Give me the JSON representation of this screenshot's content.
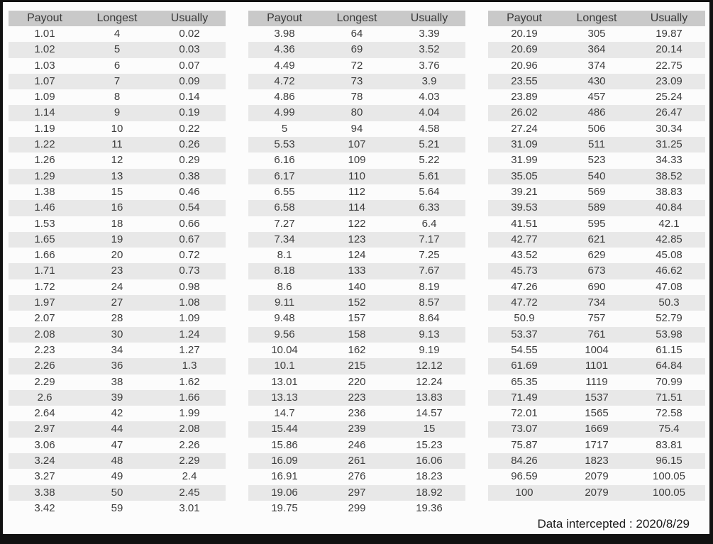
{
  "footer": {
    "label": "Data intercepted : 2020/8/29"
  },
  "colors": {
    "frame": "#111111",
    "page_bg": "#fcfcfc",
    "header_bg": "#c9c9c9",
    "stripe_bg": "#e8e8e8",
    "text": "#3d3d3d"
  },
  "chart_data": {
    "type": "table",
    "title": "",
    "columns": [
      "Payout",
      "Longest",
      "Usually"
    ],
    "panels": [
      {
        "rows": [
          [
            "1.01",
            "4",
            "0.02"
          ],
          [
            "1.02",
            "5",
            "0.03"
          ],
          [
            "1.03",
            "6",
            "0.07"
          ],
          [
            "1.07",
            "7",
            "0.09"
          ],
          [
            "1.09",
            "8",
            "0.14"
          ],
          [
            "1.14",
            "9",
            "0.19"
          ],
          [
            "1.19",
            "10",
            "0.22"
          ],
          [
            "1.22",
            "11",
            "0.26"
          ],
          [
            "1.26",
            "12",
            "0.29"
          ],
          [
            "1.29",
            "13",
            "0.38"
          ],
          [
            "1.38",
            "15",
            "0.46"
          ],
          [
            "1.46",
            "16",
            "0.54"
          ],
          [
            "1.53",
            "18",
            "0.66"
          ],
          [
            "1.65",
            "19",
            "0.67"
          ],
          [
            "1.66",
            "20",
            "0.72"
          ],
          [
            "1.71",
            "23",
            "0.73"
          ],
          [
            "1.72",
            "24",
            "0.98"
          ],
          [
            "1.97",
            "27",
            "1.08"
          ],
          [
            "2.07",
            "28",
            "1.09"
          ],
          [
            "2.08",
            "30",
            "1.24"
          ],
          [
            "2.23",
            "34",
            "1.27"
          ],
          [
            "2.26",
            "36",
            "1.3"
          ],
          [
            "2.29",
            "38",
            "1.62"
          ],
          [
            "2.6",
            "39",
            "1.66"
          ],
          [
            "2.64",
            "42",
            "1.99"
          ],
          [
            "2.97",
            "44",
            "2.08"
          ],
          [
            "3.06",
            "47",
            "2.26"
          ],
          [
            "3.24",
            "48",
            "2.29"
          ],
          [
            "3.27",
            "49",
            "2.4"
          ],
          [
            "3.38",
            "50",
            "2.45"
          ],
          [
            "3.42",
            "59",
            "3.01"
          ]
        ]
      },
      {
        "rows": [
          [
            "3.98",
            "64",
            "3.39"
          ],
          [
            "4.36",
            "69",
            "3.52"
          ],
          [
            "4.49",
            "72",
            "3.76"
          ],
          [
            "4.72",
            "73",
            "3.9"
          ],
          [
            "4.86",
            "78",
            "4.03"
          ],
          [
            "4.99",
            "80",
            "4.04"
          ],
          [
            "5",
            "94",
            "4.58"
          ],
          [
            "5.53",
            "107",
            "5.21"
          ],
          [
            "6.16",
            "109",
            "5.22"
          ],
          [
            "6.17",
            "110",
            "5.61"
          ],
          [
            "6.55",
            "112",
            "5.64"
          ],
          [
            "6.58",
            "114",
            "6.33"
          ],
          [
            "7.27",
            "122",
            "6.4"
          ],
          [
            "7.34",
            "123",
            "7.17"
          ],
          [
            "8.1",
            "124",
            "7.25"
          ],
          [
            "8.18",
            "133",
            "7.67"
          ],
          [
            "8.6",
            "140",
            "8.19"
          ],
          [
            "9.11",
            "152",
            "8.57"
          ],
          [
            "9.48",
            "157",
            "8.64"
          ],
          [
            "9.56",
            "158",
            "9.13"
          ],
          [
            "10.04",
            "162",
            "9.19"
          ],
          [
            "10.1",
            "215",
            "12.12"
          ],
          [
            "13.01",
            "220",
            "12.24"
          ],
          [
            "13.13",
            "223",
            "13.83"
          ],
          [
            "14.7",
            "236",
            "14.57"
          ],
          [
            "15.44",
            "239",
            "15"
          ],
          [
            "15.86",
            "246",
            "15.23"
          ],
          [
            "16.09",
            "261",
            "16.06"
          ],
          [
            "16.91",
            "276",
            "18.23"
          ],
          [
            "19.06",
            "297",
            "18.92"
          ],
          [
            "19.75",
            "299",
            "19.36"
          ]
        ]
      },
      {
        "rows": [
          [
            "20.19",
            "305",
            "19.87"
          ],
          [
            "20.69",
            "364",
            "20.14"
          ],
          [
            "20.96",
            "374",
            "22.75"
          ],
          [
            "23.55",
            "430",
            "23.09"
          ],
          [
            "23.89",
            "457",
            "25.24"
          ],
          [
            "26.02",
            "486",
            "26.47"
          ],
          [
            "27.24",
            "506",
            "30.34"
          ],
          [
            "31.09",
            "511",
            "31.25"
          ],
          [
            "31.99",
            "523",
            "34.33"
          ],
          [
            "35.05",
            "540",
            "38.52"
          ],
          [
            "39.21",
            "569",
            "38.83"
          ],
          [
            "39.53",
            "589",
            "40.84"
          ],
          [
            "41.51",
            "595",
            "42.1"
          ],
          [
            "42.77",
            "621",
            "42.85"
          ],
          [
            "43.52",
            "629",
            "45.08"
          ],
          [
            "45.73",
            "673",
            "46.62"
          ],
          [
            "47.26",
            "690",
            "47.08"
          ],
          [
            "47.72",
            "734",
            "50.3"
          ],
          [
            "50.9",
            "757",
            "52.79"
          ],
          [
            "53.37",
            "761",
            "53.98"
          ],
          [
            "54.55",
            "1004",
            "61.15"
          ],
          [
            "61.69",
            "1101",
            "64.84"
          ],
          [
            "65.35",
            "1119",
            "70.99"
          ],
          [
            "71.49",
            "1537",
            "71.51"
          ],
          [
            "72.01",
            "1565",
            "72.58"
          ],
          [
            "73.07",
            "1669",
            "75.4"
          ],
          [
            "75.87",
            "1717",
            "83.81"
          ],
          [
            "84.26",
            "1823",
            "96.15"
          ],
          [
            "96.59",
            "2079",
            "100.05"
          ],
          [
            "100",
            "2079",
            "100.05"
          ]
        ]
      }
    ]
  }
}
